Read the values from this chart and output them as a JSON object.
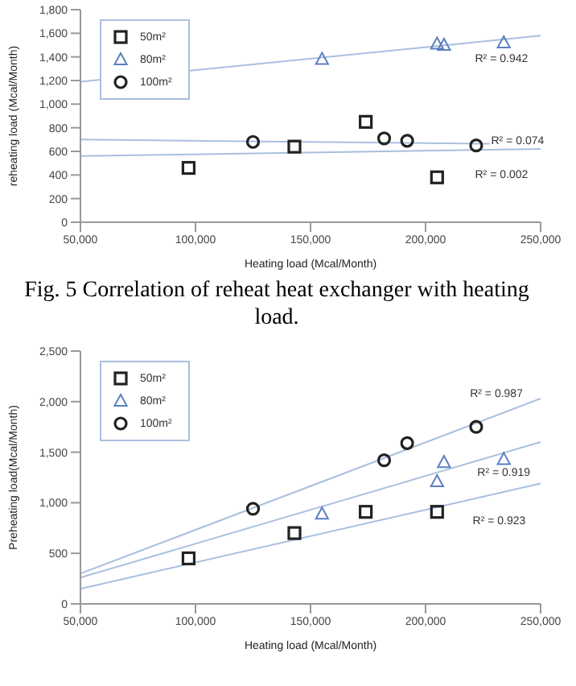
{
  "chart_data": [
    {
      "type": "scatter",
      "xlabel": "Heating load  (Mcal/Month)",
      "ylabel": "reheating load (Mcal/Month)",
      "xlim": [
        50000,
        250000
      ],
      "ylim": [
        0,
        1800
      ],
      "xticks": [
        {
          "value": 50000,
          "label": "50,000"
        },
        {
          "value": 100000,
          "label": "100,000"
        },
        {
          "value": 150000,
          "label": "150,000"
        },
        {
          "value": 200000,
          "label": "200,000"
        },
        {
          "value": 250000,
          "label": "250,000"
        }
      ],
      "yticks": [
        {
          "value": 0,
          "label": "0"
        },
        {
          "value": 200,
          "label": "200"
        },
        {
          "value": 400,
          "label": "400"
        },
        {
          "value": 600,
          "label": "600"
        },
        {
          "value": 800,
          "label": "800"
        },
        {
          "value": 1000,
          "label": "1,000"
        },
        {
          "value": 1200,
          "label": "1,200"
        },
        {
          "value": 1400,
          "label": "1,400"
        },
        {
          "value": 1600,
          "label": "1,600"
        },
        {
          "value": 1800,
          "label": "1,800"
        }
      ],
      "grid": false,
      "legend": "top left",
      "series": [
        {
          "name": "50m²",
          "color": "#222222",
          "marker": "square",
          "x": [
            97000,
            143000,
            174000,
            205000
          ],
          "values": [
            460,
            640,
            850,
            380
          ]
        },
        {
          "name": "80m²",
          "color": "#5b7fbf",
          "marker": "triangle",
          "x": [
            155000,
            205000,
            208000,
            234000
          ],
          "values": [
            1380,
            1510,
            1500,
            1520
          ]
        },
        {
          "name": "100m²",
          "color": "#222222",
          "marker": "circle",
          "x": [
            125000,
            182000,
            192000,
            222000
          ],
          "values": [
            680,
            710,
            690,
            650
          ]
        },
        {
          "type": "line",
          "color": "#a9bfdf",
          "x": [
            50000,
            250000
          ],
          "values": [
            560,
            620
          ]
        },
        {
          "type": "line",
          "color": "#a9bfdf",
          "x": [
            50000,
            250000
          ],
          "values": [
            1190,
            1580
          ]
        },
        {
          "type": "line",
          "color": "#a9bfdf",
          "x": [
            50000,
            250000
          ],
          "values": [
            700,
            660
          ]
        }
      ],
      "annotations": [
        "R² = 0.942",
        "R² = 0.074",
        "R² = 0.002",
        "Fig. 5  Correlation of reheat heat exchanger with heating load."
      ]
    },
    {
      "type": "scatter",
      "xlabel": "Heating load  (Mcal/Month)",
      "ylabel": "Preheating load(Mcal/Month)",
      "xlim": [
        50000,
        250000
      ],
      "ylim": [
        0,
        2500
      ],
      "xticks": [
        {
          "value": 50000,
          "label": "50,000"
        },
        {
          "value": 100000,
          "label": "100,000"
        },
        {
          "value": 150000,
          "label": "150,000"
        },
        {
          "value": 200000,
          "label": "200,000"
        },
        {
          "value": 250000,
          "label": "250,000"
        }
      ],
      "yticks": [
        {
          "value": 0,
          "label": "0"
        },
        {
          "value": 500,
          "label": "500"
        },
        {
          "value": 1000,
          "label": "1,000"
        },
        {
          "value": 1500,
          "label": "1,500"
        },
        {
          "value": 2000,
          "label": "2,000"
        },
        {
          "value": 2500,
          "label": "2,500"
        }
      ],
      "grid": false,
      "legend": "top left",
      "series": [
        {
          "name": "50m²",
          "color": "#222222",
          "marker": "square",
          "x": [
            97000,
            143000,
            174000,
            205000
          ],
          "values": [
            450,
            700,
            910,
            910
          ]
        },
        {
          "name": "80m²",
          "color": "#5b7fbf",
          "marker": "triangle",
          "x": [
            155000,
            205000,
            208000,
            234000
          ],
          "values": [
            890,
            1210,
            1400,
            1430
          ]
        },
        {
          "name": "100m²",
          "color": "#222222",
          "marker": "circle",
          "x": [
            125000,
            182000,
            192000,
            222000
          ],
          "values": [
            940,
            1420,
            1590,
            1750
          ]
        },
        {
          "type": "line",
          "color": "#a9bfdf",
          "x": [
            50000,
            250000
          ],
          "values": [
            300,
            2030
          ]
        },
        {
          "type": "line",
          "color": "#a9bfdf",
          "x": [
            50000,
            250000
          ],
          "values": [
            260,
            1600
          ]
        },
        {
          "type": "line",
          "color": "#a9bfdf",
          "x": [
            50000,
            250000
          ],
          "values": [
            150,
            1190
          ]
        }
      ],
      "annotations": [
        "R² = 0.987",
        "R² = 0.919",
        "R² = 0.923"
      ]
    }
  ]
}
